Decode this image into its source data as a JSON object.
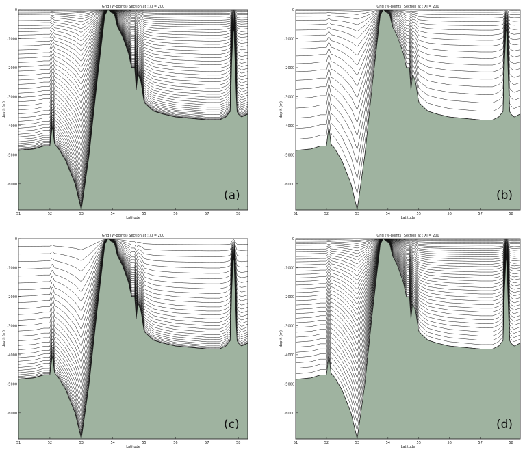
{
  "chart_data": [
    {
      "panel": "(a)",
      "type": "line",
      "title": "Grid (W-points) Section at : XI = 200",
      "xlabel": "Latitude",
      "ylabel": "depth (m)",
      "x_ticks": [
        "51",
        "52",
        "53",
        "54",
        "55",
        "56",
        "57",
        "58"
      ],
      "y_ticks": [
        "0",
        "-1000",
        "-2000",
        "-3000",
        "-4000",
        "-5000",
        "-6000"
      ],
      "xlim": [
        51,
        58.3
      ],
      "ylim": [
        -6900,
        0
      ],
      "num_levels": 50,
      "stretching": "surface-and-bottom",
      "fill_color": "#9fb3a0",
      "line_color": "#111111",
      "bathymetry": {
        "latitude": [
          51.0,
          51.5,
          51.8,
          52.0,
          52.08,
          52.15,
          52.25,
          52.5,
          52.8,
          53.0,
          53.25,
          53.5,
          53.75,
          53.85,
          53.95,
          54.05,
          54.15,
          54.3,
          54.5,
          54.6,
          54.7,
          54.75,
          54.8,
          54.9,
          55.0,
          55.1,
          55.3,
          55.6,
          56.0,
          56.5,
          57.0,
          57.4,
          57.6,
          57.75,
          57.78,
          57.85,
          57.95,
          58.0,
          58.1,
          58.3
        ],
        "depth": [
          -4850,
          -4800,
          -4700,
          -4700,
          -4000,
          -4650,
          -4750,
          -5200,
          -6000,
          -6900,
          -5000,
          -2500,
          -200,
          0,
          -100,
          -150,
          -600,
          -900,
          -1500,
          -2000,
          -2000,
          -2800,
          -2200,
          -2500,
          -3200,
          -3300,
          -3500,
          -3600,
          -3700,
          -3750,
          -3800,
          -3800,
          -3700,
          -3500,
          -2000,
          -400,
          -3500,
          -3600,
          -3700,
          -3600
        ]
      }
    },
    {
      "panel": "(b)",
      "type": "line",
      "title": "Grid (W-points) Section at : XI = 200",
      "xlabel": "Latitude",
      "ylabel": "depth (m)",
      "x_ticks": [
        "51",
        "52",
        "53",
        "54",
        "55",
        "56",
        "57",
        "58"
      ],
      "y_ticks": [
        "0",
        "-1000",
        "-2000",
        "-3000",
        "-4000",
        "-5000",
        "-6000"
      ],
      "xlim": [
        51,
        58.3
      ],
      "ylim": [
        -6900,
        0
      ],
      "num_levels": 20,
      "stretching": "surface",
      "fill_color": "#9fb3a0",
      "line_color": "#111111",
      "bathymetry": {
        "latitude": [
          51.0,
          51.5,
          51.8,
          52.0,
          52.08,
          52.15,
          52.25,
          52.5,
          52.8,
          53.0,
          53.25,
          53.5,
          53.75,
          53.85,
          53.95,
          54.05,
          54.15,
          54.3,
          54.5,
          54.6,
          54.7,
          54.75,
          54.8,
          54.9,
          55.0,
          55.1,
          55.3,
          55.6,
          56.0,
          56.5,
          57.0,
          57.4,
          57.6,
          57.75,
          57.78,
          57.85,
          57.95,
          58.0,
          58.1,
          58.3
        ],
        "depth": [
          -4850,
          -4800,
          -4700,
          -4700,
          -4000,
          -4650,
          -4750,
          -5200,
          -6000,
          -6900,
          -5000,
          -2500,
          -200,
          0,
          -100,
          -150,
          -600,
          -900,
          -1500,
          -2000,
          -2000,
          -2800,
          -2200,
          -2500,
          -3200,
          -3300,
          -3500,
          -3600,
          -3700,
          -3750,
          -3800,
          -3800,
          -3700,
          -3500,
          -2000,
          -400,
          -3500,
          -3600,
          -3700,
          -3600
        ]
      }
    },
    {
      "panel": "(c)",
      "type": "line",
      "title": "Grid (W-points) Section at : XI = 200",
      "xlabel": "Latitude",
      "ylabel": "depth (m)",
      "x_ticks": [
        "51",
        "52",
        "53",
        "54",
        "55",
        "56",
        "57",
        "58"
      ],
      "y_ticks": [
        "0",
        "-1000",
        "-2000",
        "-3000",
        "-4000",
        "-5000",
        "-6000"
      ],
      "xlim": [
        51,
        58.3
      ],
      "ylim": [
        -6900,
        0
      ],
      "num_levels": 30,
      "stretching": "bottom",
      "fill_color": "#9fb3a0",
      "line_color": "#111111",
      "bathymetry": {
        "latitude": [
          51.0,
          51.5,
          51.8,
          52.0,
          52.08,
          52.15,
          52.25,
          52.5,
          52.8,
          53.0,
          53.25,
          53.5,
          53.75,
          53.85,
          53.95,
          54.05,
          54.15,
          54.3,
          54.5,
          54.6,
          54.7,
          54.75,
          54.8,
          54.9,
          55.0,
          55.1,
          55.3,
          55.6,
          56.0,
          56.5,
          57.0,
          57.4,
          57.6,
          57.75,
          57.78,
          57.85,
          57.95,
          58.0,
          58.1,
          58.3
        ],
        "depth": [
          -4850,
          -4800,
          -4700,
          -4700,
          -4000,
          -4650,
          -4750,
          -5200,
          -6000,
          -6900,
          -5000,
          -2500,
          -200,
          0,
          -100,
          -150,
          -600,
          -900,
          -1500,
          -2000,
          -2000,
          -2800,
          -2200,
          -2500,
          -3200,
          -3300,
          -3500,
          -3600,
          -3700,
          -3750,
          -3800,
          -3800,
          -3700,
          -3500,
          -2000,
          -400,
          -3500,
          -3600,
          -3700,
          -3600
        ]
      }
    },
    {
      "panel": "(d)",
      "type": "line",
      "title": "Grid (W-points) Section at : XI = 200",
      "xlabel": "Latitude",
      "ylabel": "depth (m)",
      "x_ticks": [
        "51",
        "52",
        "53",
        "54",
        "55",
        "56",
        "57",
        "58"
      ],
      "y_ticks": [
        "0",
        "-1000",
        "-2000",
        "-3000",
        "-4000",
        "-5000",
        "-6000"
      ],
      "xlim": [
        51,
        58.3
      ],
      "ylim": [
        -6900,
        0
      ],
      "num_levels": 40,
      "stretching": "surface",
      "fill_color": "#9fb3a0",
      "line_color": "#111111",
      "bathymetry": {
        "latitude": [
          51.0,
          51.5,
          51.8,
          52.0,
          52.08,
          52.15,
          52.25,
          52.5,
          52.8,
          53.0,
          53.25,
          53.5,
          53.75,
          53.85,
          53.95,
          54.05,
          54.15,
          54.3,
          54.5,
          54.6,
          54.7,
          54.75,
          54.8,
          54.9,
          55.0,
          55.1,
          55.3,
          55.6,
          56.0,
          56.5,
          57.0,
          57.4,
          57.6,
          57.75,
          57.78,
          57.85,
          57.95,
          58.0,
          58.1,
          58.3
        ],
        "depth": [
          -4850,
          -4800,
          -4700,
          -4700,
          -4000,
          -4650,
          -4750,
          -5200,
          -6000,
          -6900,
          -5000,
          -2500,
          -200,
          0,
          -100,
          -150,
          -600,
          -900,
          -1500,
          -2000,
          -2000,
          -2800,
          -2200,
          -2500,
          -3200,
          -3300,
          -3500,
          -3600,
          -3700,
          -3750,
          -3800,
          -3800,
          -3700,
          -3500,
          -2000,
          -400,
          -3500,
          -3600,
          -3700,
          -3600
        ]
      }
    }
  ]
}
